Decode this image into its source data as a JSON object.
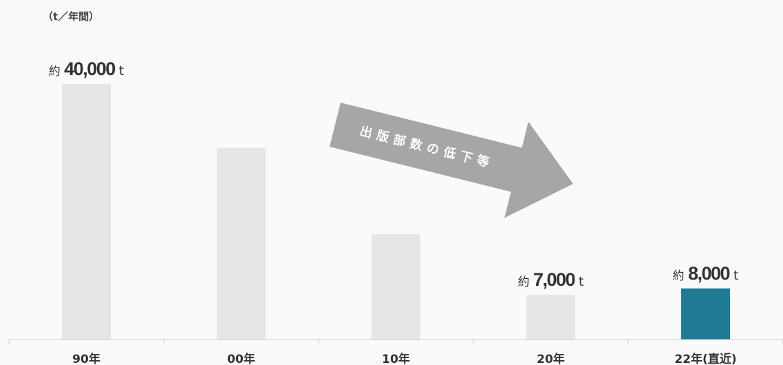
{
  "chart_data": {
    "type": "bar",
    "unit_label": "（t／年間）",
    "categories": [
      "90年",
      "00年",
      "10年",
      "20年",
      "22年(直近)"
    ],
    "values": [
      40000,
      30000,
      16500,
      7000,
      8000
    ],
    "ylim": [
      0,
      40000
    ],
    "grid": false,
    "bar_colors": [
      "#e6e6e6",
      "#e6e6e6",
      "#e6e6e6",
      "#e6e6e6",
      "#1f7a96"
    ],
    "data_labels": [
      {
        "index": 0,
        "prefix": "約",
        "number": "40,000",
        "unit": "t"
      },
      {
        "index": 3,
        "prefix": "約",
        "number": "7,000",
        "unit": "t"
      },
      {
        "index": 4,
        "prefix": "約",
        "number": "8,000",
        "unit": "t"
      }
    ],
    "annotation": {
      "text": "出版部数の低下等",
      "color": "#a6a6a6"
    }
  }
}
